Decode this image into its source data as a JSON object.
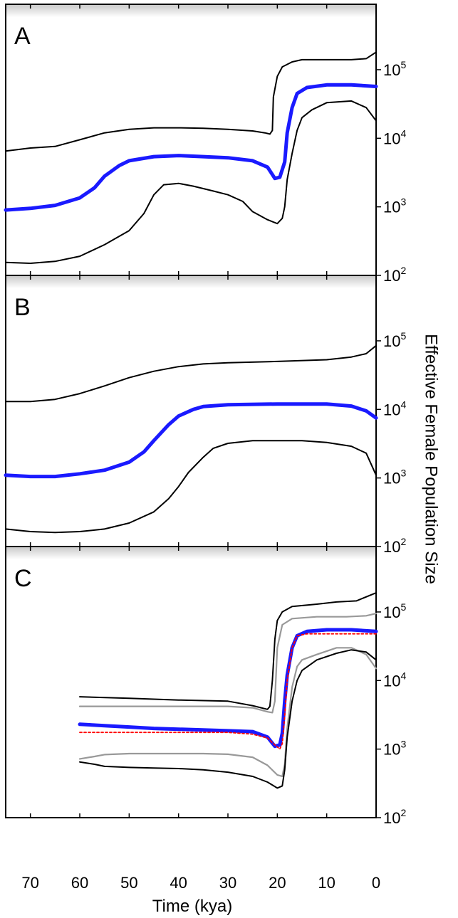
{
  "figure": {
    "ylabel": "Effective Female Population Size",
    "xlabel": "Time (kya)"
  },
  "colors": {
    "median": "#1a1aff",
    "hpd": "#000000",
    "hpd_alt": "#999999",
    "fit": "#ff0000",
    "panel_shade": "#c8c8c8"
  },
  "chart_data": [
    {
      "type": "line",
      "panel": "A",
      "x_axis": {
        "label": "Time (kya)",
        "lim": [
          75,
          0
        ],
        "reversed": true,
        "ticks": [
          70,
          60,
          50,
          40,
          30,
          20,
          10,
          0
        ]
      },
      "y_axis": {
        "label": "Effective Female Population Size",
        "scale": "log",
        "lim": [
          100,
          900000
        ],
        "ticks": [
          {
            "base": "10",
            "exp": "2"
          },
          {
            "base": "10",
            "exp": "3"
          },
          {
            "base": "10",
            "exp": "4"
          },
          {
            "base": "10",
            "exp": "5"
          }
        ]
      },
      "series": [
        {
          "role": "upper",
          "style": "hpd",
          "points": [
            [
              75,
              6500
            ],
            [
              70,
              7200
            ],
            [
              65,
              7600
            ],
            [
              60,
              9500
            ],
            [
              55,
              12000
            ],
            [
              50,
              13500
            ],
            [
              45,
              14200
            ],
            [
              40,
              14200
            ],
            [
              35,
              14000
            ],
            [
              30,
              13500
            ],
            [
              25,
              12800
            ],
            [
              22.5,
              12000
            ],
            [
              21.5,
              11500
            ],
            [
              21,
              13000
            ],
            [
              20.8,
              40000
            ],
            [
              20,
              80000
            ],
            [
              19,
              110000
            ],
            [
              17,
              130000
            ],
            [
              15,
              140000
            ],
            [
              10,
              140000
            ],
            [
              5,
              140000
            ],
            [
              2,
              145000
            ],
            [
              0,
              180000
            ]
          ]
        },
        {
          "role": "median",
          "style": "median",
          "points": [
            [
              75,
              900
            ],
            [
              70,
              950
            ],
            [
              65,
              1050
            ],
            [
              60,
              1350
            ],
            [
              57,
              1900
            ],
            [
              55,
              2800
            ],
            [
              52,
              4000
            ],
            [
              50,
              4700
            ],
            [
              45,
              5400
            ],
            [
              40,
              5600
            ],
            [
              35,
              5400
            ],
            [
              30,
              5200
            ],
            [
              25,
              4700
            ],
            [
              22,
              3800
            ],
            [
              20.5,
              2600
            ],
            [
              19.5,
              2700
            ],
            [
              18.5,
              4500
            ],
            [
              18,
              12000
            ],
            [
              17,
              28000
            ],
            [
              16,
              45000
            ],
            [
              14,
              55000
            ],
            [
              10,
              60000
            ],
            [
              5,
              60000
            ],
            [
              0,
              57000
            ]
          ]
        },
        {
          "role": "lower",
          "style": "hpd",
          "points": [
            [
              75,
              155
            ],
            [
              70,
              150
            ],
            [
              65,
              160
            ],
            [
              60,
              190
            ],
            [
              55,
              280
            ],
            [
              50,
              450
            ],
            [
              47,
              800
            ],
            [
              45,
              1500
            ],
            [
              43,
              2100
            ],
            [
              40,
              2200
            ],
            [
              37,
              2000
            ],
            [
              33,
              1700
            ],
            [
              30,
              1500
            ],
            [
              27,
              1200
            ],
            [
              25,
              850
            ],
            [
              22,
              650
            ],
            [
              20,
              570
            ],
            [
              19,
              680
            ],
            [
              18.5,
              1000
            ],
            [
              18,
              2500
            ],
            [
              17,
              6000
            ],
            [
              16,
              13000
            ],
            [
              15,
              20000
            ],
            [
              13,
              26000
            ],
            [
              10,
              33000
            ],
            [
              5,
              35000
            ],
            [
              2,
              28000
            ],
            [
              0,
              18000
            ]
          ]
        }
      ]
    },
    {
      "type": "line",
      "panel": "B",
      "x_axis": {
        "label": "Time (kya)",
        "lim": [
          75,
          0
        ],
        "reversed": true,
        "ticks": [
          70,
          60,
          50,
          40,
          30,
          20,
          10,
          0
        ]
      },
      "y_axis": {
        "label": "Effective Female Population Size",
        "scale": "log",
        "lim": [
          100,
          900000
        ],
        "ticks": [
          {
            "base": "10",
            "exp": "2"
          },
          {
            "base": "10",
            "exp": "3"
          },
          {
            "base": "10",
            "exp": "4"
          },
          {
            "base": "10",
            "exp": "5"
          }
        ]
      },
      "series": [
        {
          "role": "upper",
          "style": "hpd",
          "points": [
            [
              75,
              13000
            ],
            [
              70,
              13000
            ],
            [
              65,
              14000
            ],
            [
              60,
              17000
            ],
            [
              55,
              22000
            ],
            [
              50,
              29000
            ],
            [
              45,
              36000
            ],
            [
              40,
              42000
            ],
            [
              35,
              46000
            ],
            [
              30,
              48000
            ],
            [
              20,
              50000
            ],
            [
              10,
              53000
            ],
            [
              5,
              58000
            ],
            [
              2,
              65000
            ],
            [
              0,
              85000
            ]
          ]
        },
        {
          "role": "median",
          "style": "median",
          "points": [
            [
              75,
              1100
            ],
            [
              70,
              1050
            ],
            [
              65,
              1050
            ],
            [
              60,
              1150
            ],
            [
              55,
              1300
            ],
            [
              50,
              1700
            ],
            [
              47,
              2400
            ],
            [
              45,
              3500
            ],
            [
              42,
              6000
            ],
            [
              40,
              8000
            ],
            [
              37,
              10000
            ],
            [
              35,
              11000
            ],
            [
              30,
              11700
            ],
            [
              20,
              12000
            ],
            [
              10,
              12000
            ],
            [
              5,
              11200
            ],
            [
              2,
              9500
            ],
            [
              0,
              7500
            ]
          ]
        },
        {
          "role": "lower",
          "style": "hpd",
          "points": [
            [
              75,
              180
            ],
            [
              70,
              165
            ],
            [
              65,
              160
            ],
            [
              60,
              165
            ],
            [
              55,
              180
            ],
            [
              50,
              220
            ],
            [
              45,
              320
            ],
            [
              42,
              500
            ],
            [
              40,
              750
            ],
            [
              38,
              1200
            ],
            [
              35,
              2000
            ],
            [
              33,
              2700
            ],
            [
              30,
              3200
            ],
            [
              25,
              3500
            ],
            [
              15,
              3500
            ],
            [
              10,
              3300
            ],
            [
              5,
              2900
            ],
            [
              2,
              2300
            ],
            [
              0,
              1100
            ]
          ]
        }
      ]
    },
    {
      "type": "line",
      "panel": "C",
      "x_axis": {
        "label": "Time (kya)",
        "lim": [
          75,
          0
        ],
        "reversed": true,
        "ticks": [
          70,
          60,
          50,
          40,
          30,
          20,
          10,
          0
        ]
      },
      "y_axis": {
        "label": "Effective Female Population Size",
        "scale": "log",
        "lim": [
          100,
          900000
        ],
        "ticks": [
          {
            "base": "10",
            "exp": "2"
          },
          {
            "base": "10",
            "exp": "3"
          },
          {
            "base": "10",
            "exp": "4"
          },
          {
            "base": "10",
            "exp": "5"
          }
        ]
      },
      "series": [
        {
          "role": "upper",
          "style": "hpd",
          "points": [
            [
              60,
              5800
            ],
            [
              50,
              5500
            ],
            [
              40,
              5200
            ],
            [
              30,
              5000
            ],
            [
              25,
              4300
            ],
            [
              22,
              3800
            ],
            [
              21.5,
              4200
            ],
            [
              21,
              10000
            ],
            [
              20.5,
              40000
            ],
            [
              20,
              75000
            ],
            [
              19,
              100000
            ],
            [
              17,
              120000
            ],
            [
              12,
              130000
            ],
            [
              8,
              140000
            ],
            [
              4,
              145000
            ],
            [
              0,
              190000
            ]
          ]
        },
        {
          "role": "upper_alt",
          "style": "hpd_alt",
          "points": [
            [
              60,
              4200
            ],
            [
              50,
              4200
            ],
            [
              40,
              4200
            ],
            [
              30,
              4200
            ],
            [
              25,
              4000
            ],
            [
              22,
              3500
            ],
            [
              21,
              3400
            ],
            [
              20.5,
              5000
            ],
            [
              20,
              30000
            ],
            [
              19,
              65000
            ],
            [
              17,
              80000
            ],
            [
              12,
              85000
            ],
            [
              6,
              85000
            ],
            [
              2,
              88000
            ],
            [
              0,
              95000
            ]
          ]
        },
        {
          "role": "median",
          "style": "median",
          "points": [
            [
              60,
              2300
            ],
            [
              55,
              2200
            ],
            [
              50,
              2100
            ],
            [
              45,
              2000
            ],
            [
              40,
              1950
            ],
            [
              35,
              1900
            ],
            [
              30,
              1850
            ],
            [
              25,
              1800
            ],
            [
              22,
              1500
            ],
            [
              20.5,
              1100
            ],
            [
              19.5,
              1150
            ],
            [
              19,
              1700
            ],
            [
              18.5,
              5000
            ],
            [
              18,
              12000
            ],
            [
              17,
              30000
            ],
            [
              16,
              45000
            ],
            [
              14,
              52000
            ],
            [
              10,
              55000
            ],
            [
              5,
              55000
            ],
            [
              0,
              52000
            ]
          ]
        },
        {
          "role": "fit",
          "style": "fit",
          "points": [
            [
              60,
              1750
            ],
            [
              50,
              1750
            ],
            [
              40,
              1750
            ],
            [
              30,
              1750
            ],
            [
              25,
              1650
            ],
            [
              22,
              1450
            ],
            [
              20.5,
              1150
            ],
            [
              19.5,
              1000
            ],
            [
              19,
              1200
            ],
            [
              18.5,
              3000
            ],
            [
              18,
              10000
            ],
            [
              17,
              30000
            ],
            [
              16,
              45000
            ],
            [
              14,
              48000
            ],
            [
              10,
              48000
            ],
            [
              5,
              48000
            ],
            [
              0,
              48000
            ]
          ]
        },
        {
          "role": "lower_alt",
          "style": "hpd_alt",
          "points": [
            [
              60,
              720
            ],
            [
              57,
              780
            ],
            [
              55,
              830
            ],
            [
              50,
              860
            ],
            [
              45,
              860
            ],
            [
              40,
              860
            ],
            [
              35,
              860
            ],
            [
              30,
              840
            ],
            [
              25,
              760
            ],
            [
              22,
              580
            ],
            [
              20,
              420
            ],
            [
              19,
              400
            ],
            [
              18.5,
              600
            ],
            [
              18,
              2000
            ],
            [
              17,
              8000
            ],
            [
              16,
              16000
            ],
            [
              15,
              20000
            ],
            [
              12,
              24000
            ],
            [
              8,
              30000
            ],
            [
              5,
              30000
            ],
            [
              2,
              24000
            ],
            [
              0,
              15000
            ]
          ]
        },
        {
          "role": "lower",
          "style": "hpd",
          "points": [
            [
              60,
              650
            ],
            [
              57,
              600
            ],
            [
              55,
              560
            ],
            [
              50,
              540
            ],
            [
              45,
              530
            ],
            [
              40,
              520
            ],
            [
              35,
              500
            ],
            [
              30,
              460
            ],
            [
              25,
              400
            ],
            [
              22,
              330
            ],
            [
              20,
              270
            ],
            [
              19,
              290
            ],
            [
              18.5,
              500
            ],
            [
              18,
              1500
            ],
            [
              17,
              5000
            ],
            [
              16,
              10000
            ],
            [
              15,
              14000
            ],
            [
              12,
              20000
            ],
            [
              8,
              25000
            ],
            [
              5,
              28000
            ],
            [
              2,
              26000
            ],
            [
              0,
              20000
            ]
          ]
        }
      ]
    }
  ]
}
